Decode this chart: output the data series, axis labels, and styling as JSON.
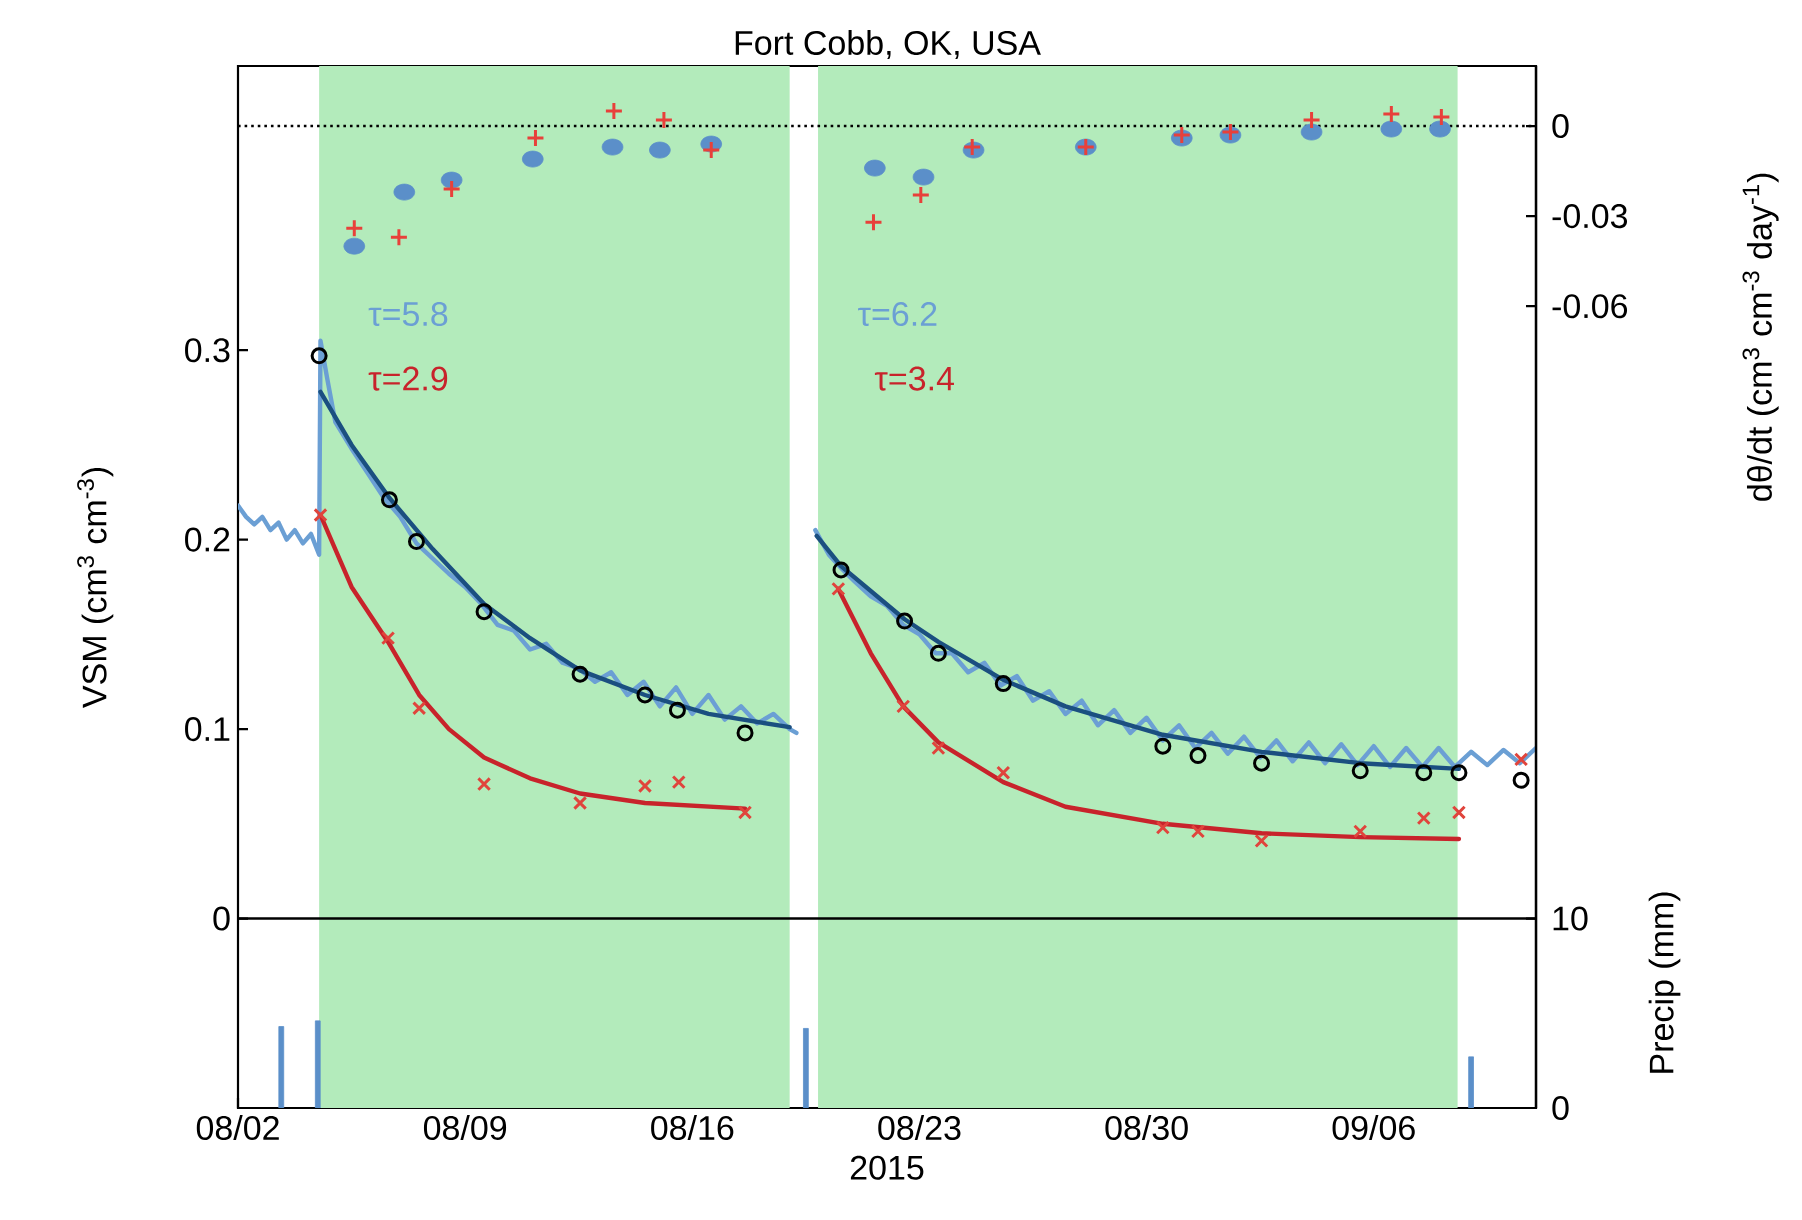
{
  "chart_data": {
    "type": "line",
    "title": "Fort Cobb, OK, USA",
    "xlabel": "2015",
    "ylabel": "VSM (cm$^{3}$ cm$^{-3}$)",
    "y2label": "dθ/dt (cm$^{3}$ cm$^{-3}$ day$^{-1}$)",
    "y3label": "Precip (mm)",
    "xlim": [
      "2015-08-02",
      "2015-09-11"
    ],
    "xticks": [
      {
        "value": "2015-08-02",
        "label": "08/02"
      },
      {
        "value": "2015-08-09",
        "label": "08/09"
      },
      {
        "value": "2015-08-16",
        "label": "08/16"
      },
      {
        "value": "2015-08-23",
        "label": "08/23"
      },
      {
        "value": "2015-08-30",
        "label": "08/30"
      },
      {
        "value": "2015-09-06",
        "label": "09/06"
      }
    ],
    "ylim": [
      -0.1,
      0.45
    ],
    "yticks": [
      0,
      0.1,
      0.2,
      0.3
    ],
    "y2lim": [
      -0.327,
      0.02
    ],
    "y2ticks": [
      0,
      -0.03,
      -0.06
    ],
    "y3lim": [
      0,
      55
    ],
    "y3ticks": [
      0,
      10
    ],
    "annotations": [
      "τ=5.8",
      "τ=2.9",
      "τ=6.2",
      "τ=3.4"
    ],
    "bands": [
      {
        "axis": "x",
        "from": "2015-08-04T12:00",
        "to": "2015-08-19T00:00",
        "color": "#b3ebbb"
      },
      {
        "axis": "x",
        "from": "2015-08-19T21:00",
        "to": "2015-09-08T14:00",
        "color": "#b3ebbb"
      }
    ],
    "ref_lines": [
      {
        "axis": "y2",
        "value": 0,
        "color": "#000000",
        "line_style": "dotted"
      },
      {
        "axis": "y",
        "value": 0,
        "color": "#000000",
        "line_style": "solid"
      }
    ],
    "series": [
      {
        "color": "#6b9fd4",
        "x": [
          "2015-08-02T00:00",
          "2015-08-02T06:00",
          "2015-08-02T12:00",
          "2015-08-02T18:00",
          "2015-08-03T00:00",
          "2015-08-03T06:00",
          "2015-08-03T12:00",
          "2015-08-03T18:00",
          "2015-08-04T00:00",
          "2015-08-04T06:00",
          "2015-08-04T12:00",
          "2015-08-04T13:00",
          "2015-08-04T18:00",
          "2015-08-05T00:00",
          "2015-08-05T12:00",
          "2015-08-06T00:00",
          "2015-08-06T12:00",
          "2015-08-07T00:00",
          "2015-08-07T12:00",
          "2015-08-08T00:00",
          "2015-08-08T12:00",
          "2015-08-09T00:00",
          "2015-08-09T12:00",
          "2015-08-10T00:00",
          "2015-08-10T12:00",
          "2015-08-11T00:00",
          "2015-08-11T12:00",
          "2015-08-12T00:00",
          "2015-08-12T12:00",
          "2015-08-13T00:00",
          "2015-08-13T12:00",
          "2015-08-14T00:00",
          "2015-08-14T12:00",
          "2015-08-15T00:00",
          "2015-08-15T12:00",
          "2015-08-16T00:00",
          "2015-08-16T12:00",
          "2015-08-17T00:00",
          "2015-08-17T12:00",
          "2015-08-18T00:00",
          "2015-08-18T12:00",
          "2015-08-19T00:00",
          "2015-08-19T05:00",
          "2015-08-19T10:00",
          "2015-08-19T19:00",
          "2015-08-20T05:00",
          "2015-08-20T14:00",
          "2015-08-21T00:00",
          "2015-08-21T12:00",
          "2015-08-22T00:00",
          "2015-08-22T12:00",
          "2015-08-23T00:00",
          "2015-08-23T12:00",
          "2015-08-24T00:00",
          "2015-08-24T12:00",
          "2015-08-25T00:00",
          "2015-08-25T12:00",
          "2015-08-26T00:00",
          "2015-08-26T12:00",
          "2015-08-27T00:00",
          "2015-08-27T12:00",
          "2015-08-28T00:00",
          "2015-08-28T12:00",
          "2015-08-29T00:00",
          "2015-08-29T12:00",
          "2015-08-30T00:00",
          "2015-08-30T12:00",
          "2015-08-31T00:00",
          "2015-08-31T12:00",
          "2015-09-01T00:00",
          "2015-09-01T12:00",
          "2015-09-02T00:00",
          "2015-09-02T12:00",
          "2015-09-03T00:00",
          "2015-09-03T12:00",
          "2015-09-04T00:00",
          "2015-09-04T12:00",
          "2015-09-05T00:00",
          "2015-09-05T12:00",
          "2015-09-06T00:00",
          "2015-09-06T12:00",
          "2015-09-07T00:00",
          "2015-09-07T12:00",
          "2015-09-08T00:00",
          "2015-09-08T12:00",
          "2015-09-09T00:00",
          "2015-09-09T12:00",
          "2015-09-10T00:00",
          "2015-09-10T12:00",
          "2015-09-11T00:00"
        ],
        "values": [
          0.218,
          0.212,
          0.208,
          0.212,
          0.205,
          0.209,
          0.2,
          0.205,
          0.198,
          0.203,
          0.192,
          0.305,
          0.285,
          0.262,
          0.248,
          0.235,
          0.222,
          0.212,
          0.198,
          0.19,
          0.182,
          0.175,
          0.166,
          0.155,
          0.152,
          0.142,
          0.145,
          0.135,
          0.132,
          0.125,
          0.13,
          0.118,
          0.125,
          0.112,
          0.122,
          0.108,
          0.118,
          0.105,
          0.112,
          0.103,
          0.108,
          0.1,
          0.098,
          null,
          0.205,
          0.192,
          0.185,
          0.178,
          0.17,
          0.165,
          0.155,
          0.15,
          0.14,
          0.14,
          0.13,
          0.135,
          0.123,
          0.128,
          0.115,
          0.12,
          0.108,
          0.115,
          0.102,
          0.11,
          0.098,
          0.106,
          0.094,
          0.102,
          0.09,
          0.098,
          0.087,
          0.096,
          0.085,
          0.094,
          0.083,
          0.093,
          0.082,
          0.092,
          0.081,
          0.091,
          0.08,
          0.09,
          0.08,
          0.09,
          0.08,
          0.088,
          0.081,
          0.089,
          0.082,
          0.09
        ]
      },
      {
        "color": "#1b4f80",
        "x": [
          "2015-08-04T13:00",
          "2015-08-05T12:00",
          "2015-08-06T16:00",
          "2015-08-08T00:00",
          "2015-08-09T14:00",
          "2015-08-11T00:00",
          "2015-08-12T13:00",
          "2015-08-14T13:00",
          "2015-08-16T12:00",
          "2015-08-19T00:00",
          "2015-08-19T10:00",
          "2015-08-19T20:00",
          "2015-08-20T14:00",
          "2015-08-22T13:00",
          "2015-08-23T14:00",
          "2015-08-25T14:00",
          "2015-08-27T12:00",
          "2015-08-30T12:00",
          "2015-09-02T13:00",
          "2015-09-05T14:00",
          "2015-09-08T15:00"
        ],
        "values": [
          0.278,
          0.25,
          0.222,
          0.195,
          0.166,
          0.148,
          0.131,
          0.118,
          0.108,
          0.101,
          null,
          0.202,
          0.186,
          0.158,
          0.146,
          0.126,
          0.112,
          0.097,
          0.088,
          0.082,
          0.079
        ]
      },
      {
        "color": "#c8232b",
        "x": [
          "2015-08-04T13:00",
          "2015-08-05T12:00",
          "2015-08-06T15:00",
          "2015-08-07T14:00",
          "2015-08-08T12:00",
          "2015-08-09T14:00",
          "2015-08-11T00:00",
          "2015-08-12T13:00",
          "2015-08-14T13:00",
          "2015-08-17T15:00",
          "2015-08-19T10:00",
          "2015-08-20T12:00",
          "2015-08-21T12:00",
          "2015-08-22T12:00",
          "2015-08-23T14:00",
          "2015-08-25T14:00",
          "2015-08-27T12:00",
          "2015-08-30T12:00",
          "2015-09-02T13:00",
          "2015-09-05T14:00",
          "2015-09-08T15:00"
        ],
        "values": [
          0.213,
          0.175,
          0.146,
          0.118,
          0.1,
          0.085,
          0.074,
          0.066,
          0.061,
          0.058,
          null,
          0.174,
          0.14,
          0.112,
          0.093,
          0.072,
          0.059,
          0.05,
          0.045,
          0.043,
          0.042
        ]
      },
      {
        "type": "scatter",
        "marker": "circle",
        "color": "#000000",
        "x": [
          "2015-08-04T12:00",
          "2015-08-06T16:00",
          "2015-08-07T12:00",
          "2015-08-09T14:00",
          "2015-08-12T13:00",
          "2015-08-14T13:00",
          "2015-08-15T13:00",
          "2015-08-17T15:00",
          "2015-08-20T14:00",
          "2015-08-22T13:00",
          "2015-08-23T14:00",
          "2015-08-25T14:00",
          "2015-08-30T12:00",
          "2015-08-31T14:00",
          "2015-09-02T13:00",
          "2015-09-05T14:00",
          "2015-09-07T13:00",
          "2015-09-08T15:00",
          "2015-09-10T13:00"
        ],
        "values": [
          0.297,
          0.221,
          0.199,
          0.162,
          0.129,
          0.118,
          0.11,
          0.098,
          0.184,
          0.157,
          0.14,
          0.124,
          0.091,
          0.086,
          0.082,
          0.078,
          0.077,
          0.077,
          0.073
        ]
      },
      {
        "type": "scatter",
        "marker": "cross",
        "color": "#e0443c",
        "x": [
          "2015-08-04T13:00",
          "2015-08-06T15:00",
          "2015-08-07T14:00",
          "2015-08-09T14:00",
          "2015-08-12T13:00",
          "2015-08-14T13:00",
          "2015-08-15T14:00",
          "2015-08-17T15:00",
          "2015-08-20T12:00",
          "2015-08-22T12:00",
          "2015-08-23T14:00",
          "2015-08-25T14:00",
          "2015-08-30T12:00",
          "2015-08-31T14:00",
          "2015-09-02T13:00",
          "2015-09-05T14:00",
          "2015-09-07T13:00",
          "2015-09-08T15:00",
          "2015-09-10T13:00"
        ],
        "values": [
          0.213,
          0.148,
          0.111,
          0.071,
          0.061,
          0.07,
          0.072,
          0.056,
          0.174,
          0.112,
          0.09,
          0.077,
          0.048,
          0.046,
          0.041,
          0.046,
          0.053,
          0.056,
          0.084
        ]
      },
      {
        "type": "scatter",
        "marker": "circle",
        "axis": "y2",
        "color": "#5b8fc9",
        "x": [
          "2015-08-05T14:00",
          "2015-08-07T03:00",
          "2015-08-08T14:00",
          "2015-08-11T02:00",
          "2015-08-13T13:00",
          "2015-08-15T00:00",
          "2015-08-16T14:00",
          "2015-08-21T15:00",
          "2015-08-23T03:00",
          "2015-08-24T16:00",
          "2015-08-28T03:00",
          "2015-08-31T02:00",
          "2015-09-01T14:00",
          "2015-09-04T02:00",
          "2015-09-06T13:00",
          "2015-09-08T01:00"
        ],
        "values": [
          -0.04,
          -0.022,
          -0.018,
          -0.011,
          -0.007,
          -0.008,
          -0.006,
          -0.014,
          -0.017,
          -0.008,
          -0.007,
          -0.004,
          -0.003,
          -0.002,
          -0.001,
          -0.001
        ]
      },
      {
        "type": "scatter",
        "marker": "plus",
        "axis": "y2",
        "color": "#e8403a",
        "x": [
          "2015-08-05T14:00",
          "2015-08-06T23:00",
          "2015-08-08T14:00",
          "2015-08-11T04:00",
          "2015-08-13T14:00",
          "2015-08-15T03:00",
          "2015-08-16T14:00",
          "2015-08-21T14:00",
          "2015-08-23T01:00",
          "2015-08-24T15:00",
          "2015-08-28T03:00",
          "2015-08-31T02:00",
          "2015-09-01T14:00",
          "2015-09-04T02:00",
          "2015-09-06T13:00",
          "2015-09-08T02:00"
        ],
        "values": [
          -0.034,
          -0.037,
          -0.021,
          -0.004,
          0.005,
          0.002,
          -0.008,
          -0.032,
          -0.023,
          -0.007,
          -0.007,
          -0.003,
          -0.002,
          0.002,
          0.004,
          0.003
        ]
      },
      {
        "type": "bar",
        "axis": "y3",
        "color": "#5b8fc9",
        "x": [
          "2015-08-03T08:00",
          "2015-08-04T11:00",
          "2015-08-19T12:00",
          "2015-09-09T00:00"
        ],
        "values": [
          4.3,
          4.6,
          4.2,
          2.7
        ]
      }
    ]
  }
}
